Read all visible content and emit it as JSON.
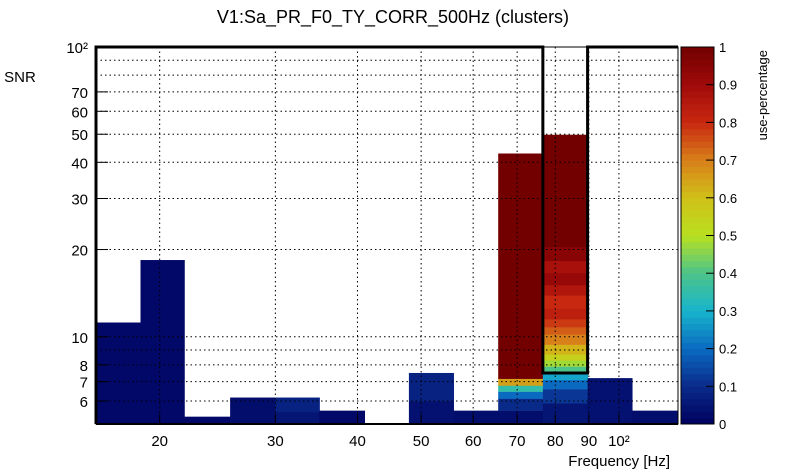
{
  "chart_data": {
    "type": "heatmap",
    "title": "V1:Sa_PR_F0_TY_CORR_500Hz (clusters)",
    "xlabel": "Frequency [Hz]",
    "ylabel": "SNR",
    "zlabel": "use-percentage",
    "xscale": "log",
    "yscale": "log",
    "xlim": [
      16,
      123
    ],
    "ylim": [
      5,
      100
    ],
    "zlim": [
      0,
      1
    ],
    "grid": true,
    "x_ticks": [
      {
        "value": 20,
        "label": "20"
      },
      {
        "value": 30,
        "label": "30"
      },
      {
        "value": 40,
        "label": "40"
      },
      {
        "value": 50,
        "label": "50"
      },
      {
        "value": 60,
        "label": "60"
      },
      {
        "value": 70,
        "label": "70"
      },
      {
        "value": 80,
        "label": "80"
      },
      {
        "value": 90,
        "label": "90"
      },
      {
        "value": 100,
        "label": "10²"
      }
    ],
    "y_ticks": [
      {
        "value": 6,
        "label": "6"
      },
      {
        "value": 7,
        "label": "7"
      },
      {
        "value": 8,
        "label": "8"
      },
      {
        "value": 10,
        "label": "10"
      },
      {
        "value": 20,
        "label": "20"
      },
      {
        "value": 30,
        "label": "30"
      },
      {
        "value": 40,
        "label": "40"
      },
      {
        "value": 50,
        "label": "50"
      },
      {
        "value": 60,
        "label": "60"
      },
      {
        "value": 70,
        "label": "70"
      },
      {
        "value": 100,
        "label": "10²"
      }
    ],
    "y_grid": [
      6,
      7,
      8,
      9,
      10,
      20,
      30,
      40,
      50,
      60,
      70,
      80,
      90
    ],
    "z_ticks": [
      {
        "value": 0,
        "label": "0"
      },
      {
        "value": 0.1,
        "label": "0.1"
      },
      {
        "value": 0.2,
        "label": "0.2"
      },
      {
        "value": 0.3,
        "label": "0.3"
      },
      {
        "value": 0.4,
        "label": "0.4"
      },
      {
        "value": 0.5,
        "label": "0.5"
      },
      {
        "value": 0.6,
        "label": "0.6"
      },
      {
        "value": 0.7,
        "label": "0.7"
      },
      {
        "value": 0.8,
        "label": "0.8"
      },
      {
        "value": 0.9,
        "label": "0.9"
      },
      {
        "value": 1,
        "label": "1"
      }
    ],
    "bins": [
      {
        "x": [
          16.0,
          18.7
        ],
        "cells": [
          [
            5,
            11.2,
            0.02
          ]
        ]
      },
      {
        "x": [
          18.7,
          21.8
        ],
        "cells": [
          [
            5,
            18.4,
            0.02
          ]
        ]
      },
      {
        "x": [
          21.8,
          25.6
        ],
        "cells": [
          [
            5,
            5.3,
            0.02
          ]
        ]
      },
      {
        "x": [
          25.6,
          30.0
        ],
        "cells": [
          [
            5,
            6.17,
            0.03
          ]
        ]
      },
      {
        "x": [
          30.0,
          35.0
        ],
        "cells": [
          [
            5,
            5.5,
            0.05
          ],
          [
            5.5,
            6.17,
            0.08
          ]
        ]
      },
      {
        "x": [
          35.0,
          41.0
        ],
        "cells": [
          [
            5,
            5.56,
            0.02
          ]
        ]
      },
      {
        "x": [
          41.0,
          47.9
        ],
        "cells": []
      },
      {
        "x": [
          47.9,
          56.0
        ],
        "cells": [
          [
            5,
            6.0,
            0.04
          ],
          [
            6.0,
            7.5,
            0.08
          ]
        ]
      },
      {
        "x": [
          56.0,
          65.5
        ],
        "cells": [
          [
            5,
            5.56,
            0.03
          ]
        ]
      },
      {
        "x": [
          65.5,
          76.6
        ],
        "cells": [
          [
            5,
            5.56,
            0.03
          ],
          [
            5.56,
            6.12,
            0.1
          ],
          [
            6.12,
            6.47,
            0.2
          ],
          [
            6.47,
            6.79,
            0.35
          ],
          [
            6.79,
            7.17,
            0.65
          ],
          [
            7.17,
            42.9,
            1.0
          ]
        ]
      },
      {
        "x": [
          76.6,
          89.6
        ],
        "cells": [
          [
            5,
            5.9,
            0.05
          ],
          [
            5.9,
            6.6,
            0.12
          ],
          [
            6.6,
            7.1,
            0.2
          ],
          [
            7.1,
            7.5,
            0.28
          ],
          [
            7.5,
            7.9,
            0.4
          ],
          [
            7.9,
            8.3,
            0.48
          ],
          [
            8.3,
            8.7,
            0.55
          ],
          [
            8.7,
            9.4,
            0.62
          ],
          [
            9.4,
            10.2,
            0.7
          ],
          [
            10.2,
            10.8,
            0.74
          ],
          [
            10.8,
            11.5,
            0.78
          ],
          [
            11.5,
            12.5,
            0.83
          ],
          [
            12.5,
            13.9,
            0.8
          ],
          [
            13.9,
            15.1,
            0.86
          ],
          [
            15.1,
            16.6,
            0.92
          ],
          [
            16.6,
            18.3,
            0.88
          ],
          [
            18.3,
            20.4,
            0.95
          ],
          [
            20.4,
            49.8,
            1.0
          ]
        ]
      },
      {
        "x": [
          89.6,
          104.7
        ],
        "cells": [
          [
            5,
            7.2,
            0.04
          ]
        ]
      },
      {
        "x": [
          104.7,
          123
        ],
        "cells": [
          [
            5,
            5.56,
            0.03
          ]
        ]
      }
    ],
    "highlight_outline": [
      [
        16,
        5
      ],
      [
        16,
        100
      ],
      [
        76.6,
        100
      ],
      [
        76.6,
        7.5
      ],
      [
        89.6,
        7.5
      ],
      [
        89.6,
        100
      ],
      [
        123,
        100
      ]
    ],
    "colormap": [
      "#00005e",
      "#0a2a8a",
      "#0a6ac0",
      "#18b4cc",
      "#4cc48a",
      "#b8e020",
      "#d0c018",
      "#d8801a",
      "#c82810",
      "#a00a0a",
      "#720000"
    ]
  }
}
